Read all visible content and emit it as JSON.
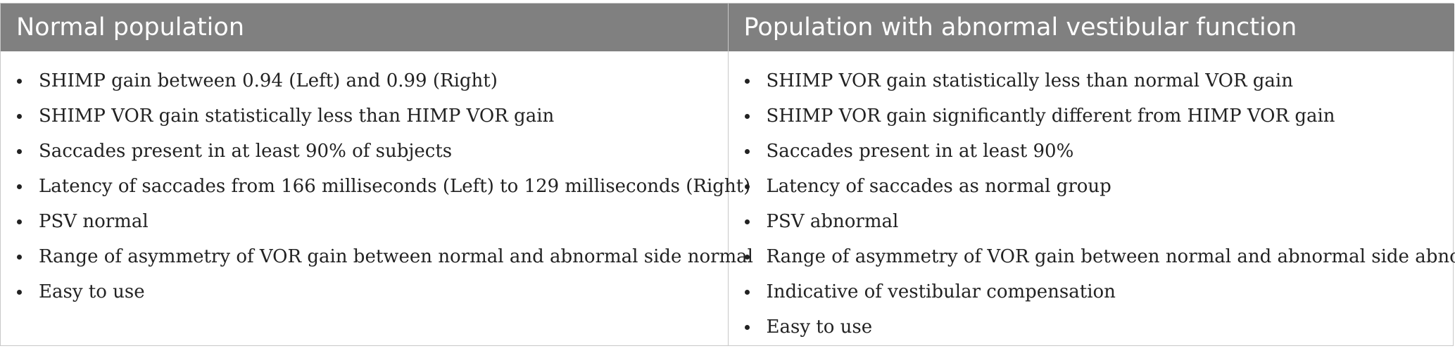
{
  "table": {
    "headers": [
      "Normal population",
      "Population with abnormal vestibular function"
    ],
    "columns": [
      [
        "SHIMP gain between 0.94 (Left) and 0.99 (Right)",
        "SHIMP VOR gain statistically less than HIMP VOR gain",
        "Saccades present in at least 90% of subjects",
        "Latency of saccades from 166 milliseconds (Left) to 129 milliseconds (Right)",
        "PSV normal",
        "Range of asymmetry of VOR gain between normal and abnormal side normal",
        "Easy to use"
      ],
      [
        "SHIMP VOR gain statistically less than normal VOR gain",
        "SHIMP VOR gain significantly different from HIMP VOR gain",
        "Saccades present in at least 90%",
        "Latency of saccades as normal group",
        "PSV abnormal",
        "Range of asymmetry of VOR gain between normal and abnormal side abnormal",
        "Indicative of vestibular compensation",
        "Easy to use"
      ]
    ]
  }
}
